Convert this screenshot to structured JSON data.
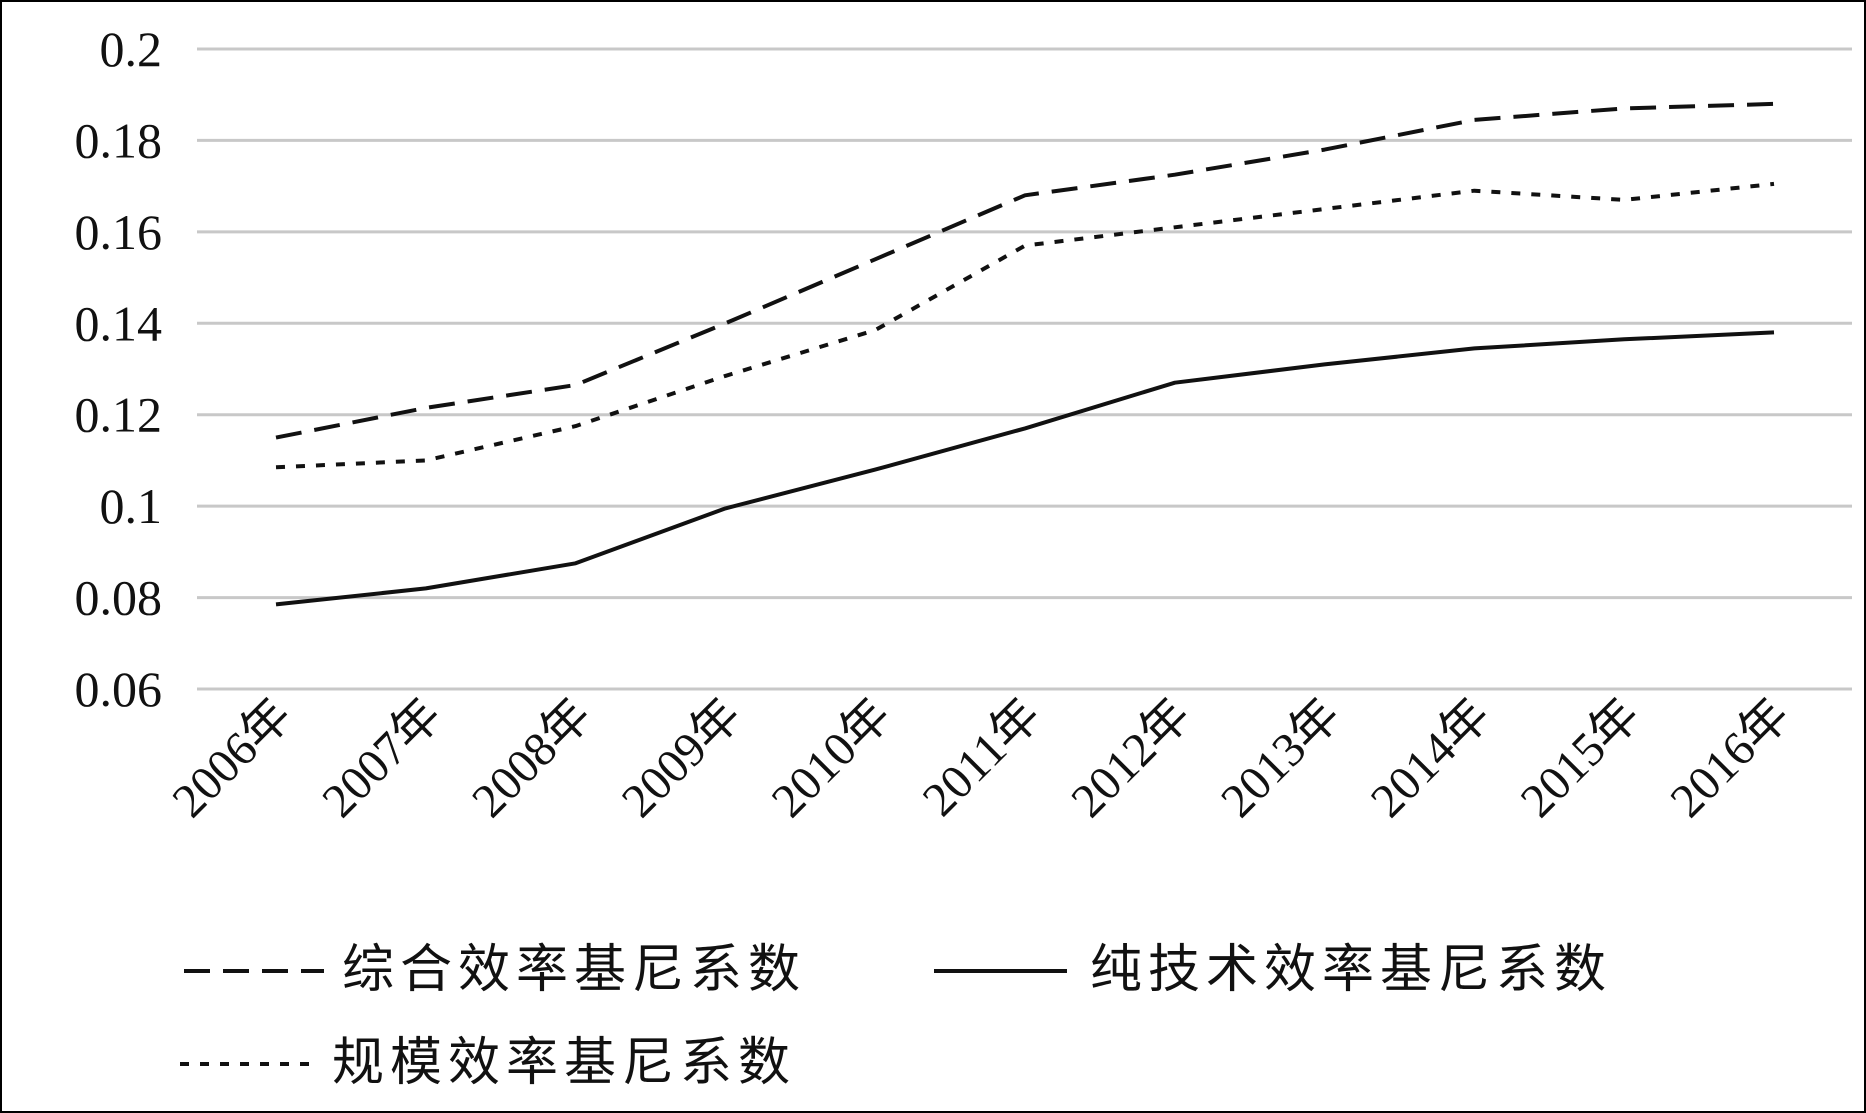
{
  "chart_data": {
    "type": "line",
    "categories": [
      "2006年",
      "2007年",
      "2008年",
      "2009年",
      "2010年",
      "2011年",
      "2012年",
      "2013年",
      "2014年",
      "2015年",
      "2016年"
    ],
    "series": [
      {
        "name": "综合效率基尼系数",
        "style": "dashed",
        "color": "#111111",
        "values": [
          0.115,
          0.1215,
          0.1265,
          0.14,
          0.154,
          0.168,
          0.1725,
          0.178,
          0.1845,
          0.187,
          0.188
        ]
      },
      {
        "name": "纯技术效率基尼系数",
        "style": "solid",
        "color": "#111111",
        "values": [
          0.0785,
          0.082,
          0.0875,
          0.0995,
          0.108,
          0.117,
          0.127,
          0.131,
          0.1345,
          0.1365,
          0.138
        ]
      },
      {
        "name": "规模效率基尼系数",
        "style": "dotted",
        "color": "#111111",
        "values": [
          0.1085,
          0.11,
          0.1175,
          0.1285,
          0.1385,
          0.157,
          0.161,
          0.165,
          0.169,
          0.167,
          0.1705
        ]
      }
    ],
    "y_ticks": [
      "0.06",
      "0.08",
      "0.1",
      "0.12",
      "0.14",
      "0.16",
      "0.18",
      "0.2"
    ],
    "ylim": [
      0.06,
      0.2
    ],
    "grid": true,
    "legend_position": "bottom",
    "title": "",
    "xlabel": "",
    "ylabel": ""
  }
}
